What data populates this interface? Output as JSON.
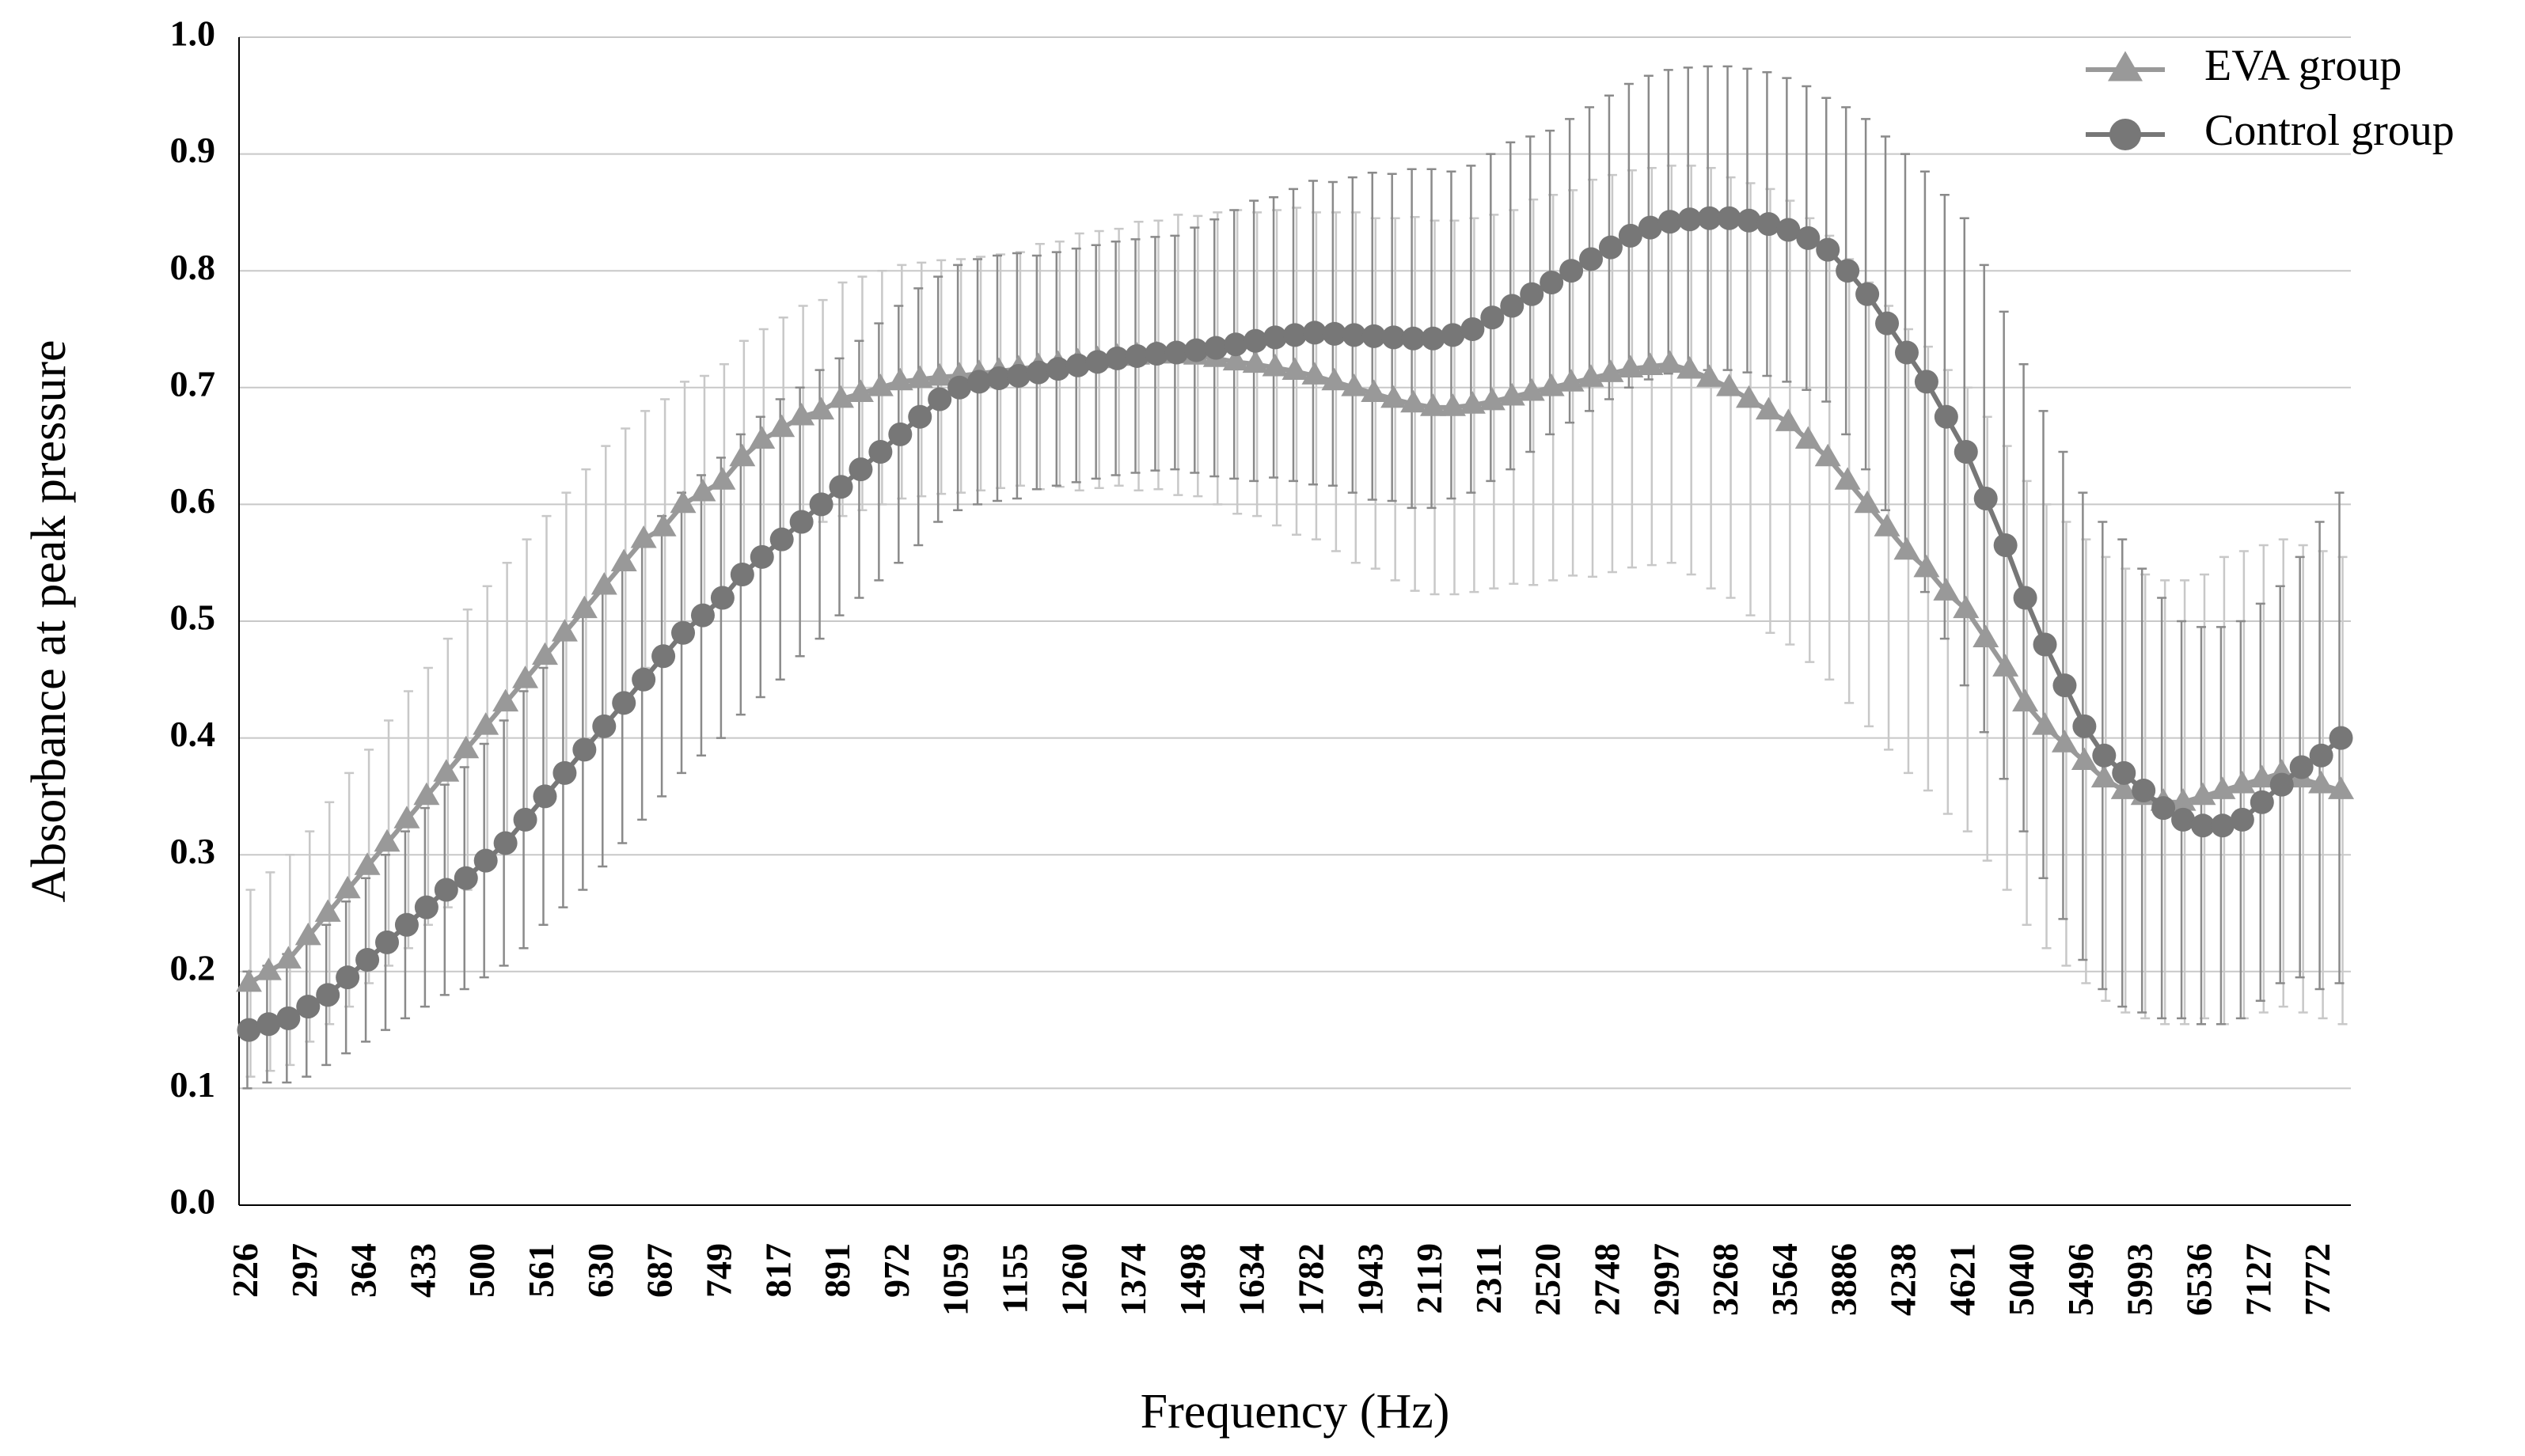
{
  "chart_data": {
    "type": "line",
    "y_label": "Absorbance at peak pressure",
    "x_label": "Frequency (Hz)",
    "categories": [
      "226",
      null,
      null,
      "297",
      null,
      null,
      "364",
      null,
      null,
      "433",
      null,
      null,
      "500",
      null,
      null,
      "561",
      null,
      null,
      "630",
      null,
      null,
      "687",
      null,
      null,
      "749",
      null,
      null,
      "817",
      null,
      null,
      "891",
      null,
      null,
      "972",
      null,
      null,
      "1059",
      null,
      null,
      "1155",
      null,
      null,
      "1260",
      null,
      null,
      "1374",
      null,
      null,
      "1498",
      null,
      null,
      "1634",
      null,
      null,
      "1782",
      null,
      null,
      "1943",
      null,
      null,
      "2119",
      null,
      null,
      "2311",
      null,
      null,
      "2520",
      null,
      null,
      "2748",
      null,
      null,
      "2997",
      null,
      null,
      "3268",
      null,
      null,
      "3564",
      null,
      null,
      "3886",
      null,
      null,
      "4238",
      null,
      null,
      "4621",
      null,
      null,
      "5040",
      null,
      null,
      "5496",
      null,
      null,
      "5993",
      null,
      null,
      "6536",
      null,
      null,
      "7127",
      null,
      null,
      "7772",
      null
    ],
    "series": [
      {
        "name": "EVA group",
        "color": "#999999",
        "error_color": "#c8c8c8",
        "marker": "triangle",
        "values": [
          0.19,
          0.2,
          0.21,
          0.23,
          0.25,
          0.27,
          0.29,
          0.31,
          0.33,
          0.35,
          0.37,
          0.39,
          0.41,
          0.43,
          0.45,
          0.47,
          0.49,
          0.51,
          0.53,
          0.55,
          0.57,
          0.58,
          0.6,
          0.61,
          0.62,
          0.64,
          0.655,
          0.665,
          0.675,
          0.68,
          0.69,
          0.695,
          0.7,
          0.705,
          0.707,
          0.709,
          0.71,
          0.712,
          0.714,
          0.716,
          0.718,
          0.72,
          0.722,
          0.724,
          0.726,
          0.727,
          0.728,
          0.728,
          0.727,
          0.725,
          0.722,
          0.72,
          0.717,
          0.714,
          0.71,
          0.705,
          0.7,
          0.695,
          0.69,
          0.686,
          0.683,
          0.683,
          0.685,
          0.688,
          0.692,
          0.696,
          0.7,
          0.704,
          0.708,
          0.712,
          0.716,
          0.718,
          0.72,
          0.715,
          0.708,
          0.7,
          0.69,
          0.68,
          0.67,
          0.655,
          0.64,
          0.62,
          0.6,
          0.58,
          0.56,
          0.545,
          0.525,
          0.51,
          0.485,
          0.46,
          0.43,
          0.41,
          0.395,
          0.38,
          0.365,
          0.355,
          0.35,
          0.345,
          0.345,
          0.35,
          0.355,
          0.36,
          0.365,
          0.37,
          0.365,
          0.36,
          0.355
        ],
        "errors": [
          0.08,
          0.085,
          0.09,
          0.09,
          0.095,
          0.1,
          0.1,
          0.105,
          0.11,
          0.11,
          0.115,
          0.12,
          0.12,
          0.12,
          0.12,
          0.12,
          0.12,
          0.12,
          0.12,
          0.115,
          0.11,
          0.11,
          0.105,
          0.1,
          0.1,
          0.1,
          0.095,
          0.095,
          0.095,
          0.095,
          0.1,
          0.1,
          0.1,
          0.1,
          0.1,
          0.1,
          0.1,
          0.1,
          0.1,
          0.1,
          0.105,
          0.105,
          0.11,
          0.11,
          0.11,
          0.115,
          0.115,
          0.12,
          0.12,
          0.125,
          0.13,
          0.13,
          0.135,
          0.14,
          0.14,
          0.145,
          0.15,
          0.15,
          0.155,
          0.16,
          0.16,
          0.16,
          0.16,
          0.16,
          0.16,
          0.165,
          0.165,
          0.165,
          0.17,
          0.17,
          0.17,
          0.17,
          0.17,
          0.175,
          0.18,
          0.18,
          0.185,
          0.19,
          0.19,
          0.19,
          0.19,
          0.19,
          0.19,
          0.19,
          0.19,
          0.19,
          0.19,
          0.19,
          0.19,
          0.19,
          0.19,
          0.19,
          0.19,
          0.19,
          0.19,
          0.19,
          0.19,
          0.19,
          0.19,
          0.19,
          0.2,
          0.2,
          0.2,
          0.2,
          0.2,
          0.2,
          0.2
        ]
      },
      {
        "name": "Control group",
        "color": "#777777",
        "error_color": "#8a8a8a",
        "marker": "circle",
        "values": [
          0.15,
          0.155,
          0.16,
          0.17,
          0.18,
          0.195,
          0.21,
          0.225,
          0.24,
          0.255,
          0.27,
          0.28,
          0.295,
          0.31,
          0.33,
          0.35,
          0.37,
          0.39,
          0.41,
          0.43,
          0.45,
          0.47,
          0.49,
          0.505,
          0.52,
          0.54,
          0.555,
          0.57,
          0.585,
          0.6,
          0.615,
          0.63,
          0.645,
          0.66,
          0.675,
          0.69,
          0.7,
          0.705,
          0.708,
          0.71,
          0.713,
          0.716,
          0.719,
          0.722,
          0.725,
          0.727,
          0.729,
          0.73,
          0.732,
          0.734,
          0.737,
          0.74,
          0.743,
          0.745,
          0.747,
          0.746,
          0.745,
          0.744,
          0.743,
          0.742,
          0.742,
          0.745,
          0.75,
          0.76,
          0.77,
          0.78,
          0.79,
          0.8,
          0.81,
          0.82,
          0.83,
          0.837,
          0.842,
          0.844,
          0.845,
          0.845,
          0.843,
          0.84,
          0.835,
          0.828,
          0.818,
          0.8,
          0.78,
          0.755,
          0.73,
          0.705,
          0.675,
          0.645,
          0.605,
          0.565,
          0.52,
          0.48,
          0.445,
          0.41,
          0.385,
          0.37,
          0.355,
          0.34,
          0.33,
          0.325,
          0.325,
          0.33,
          0.345,
          0.36,
          0.375,
          0.385,
          0.4
        ],
        "errors": [
          0.05,
          0.05,
          0.055,
          0.06,
          0.06,
          0.065,
          0.07,
          0.075,
          0.08,
          0.085,
          0.09,
          0.095,
          0.1,
          0.105,
          0.11,
          0.11,
          0.115,
          0.12,
          0.12,
          0.12,
          0.12,
          0.12,
          0.12,
          0.12,
          0.12,
          0.12,
          0.12,
          0.12,
          0.115,
          0.115,
          0.11,
          0.11,
          0.11,
          0.11,
          0.11,
          0.105,
          0.105,
          0.105,
          0.105,
          0.105,
          0.1,
          0.1,
          0.1,
          0.1,
          0.1,
          0.1,
          0.1,
          0.1,
          0.105,
          0.11,
          0.115,
          0.12,
          0.12,
          0.125,
          0.13,
          0.13,
          0.135,
          0.14,
          0.14,
          0.145,
          0.145,
          0.14,
          0.14,
          0.14,
          0.14,
          0.135,
          0.13,
          0.13,
          0.13,
          0.13,
          0.13,
          0.13,
          0.13,
          0.13,
          0.13,
          0.13,
          0.13,
          0.13,
          0.13,
          0.13,
          0.13,
          0.14,
          0.15,
          0.16,
          0.17,
          0.18,
          0.19,
          0.2,
          0.2,
          0.2,
          0.2,
          0.2,
          0.2,
          0.2,
          0.2,
          0.2,
          0.19,
          0.18,
          0.17,
          0.17,
          0.17,
          0.17,
          0.17,
          0.17,
          0.18,
          0.2,
          0.21
        ]
      }
    ],
    "ylim": [
      0,
      1
    ],
    "yticks": [
      {
        "value": 0,
        "label": "0.0"
      },
      0.1,
      0.2,
      0.3,
      0.4,
      0.5,
      0.6,
      0.7,
      0.8,
      0.9,
      {
        "value": 1,
        "label": "1.0"
      }
    ],
    "grid": true,
    "legend": "upper right"
  }
}
